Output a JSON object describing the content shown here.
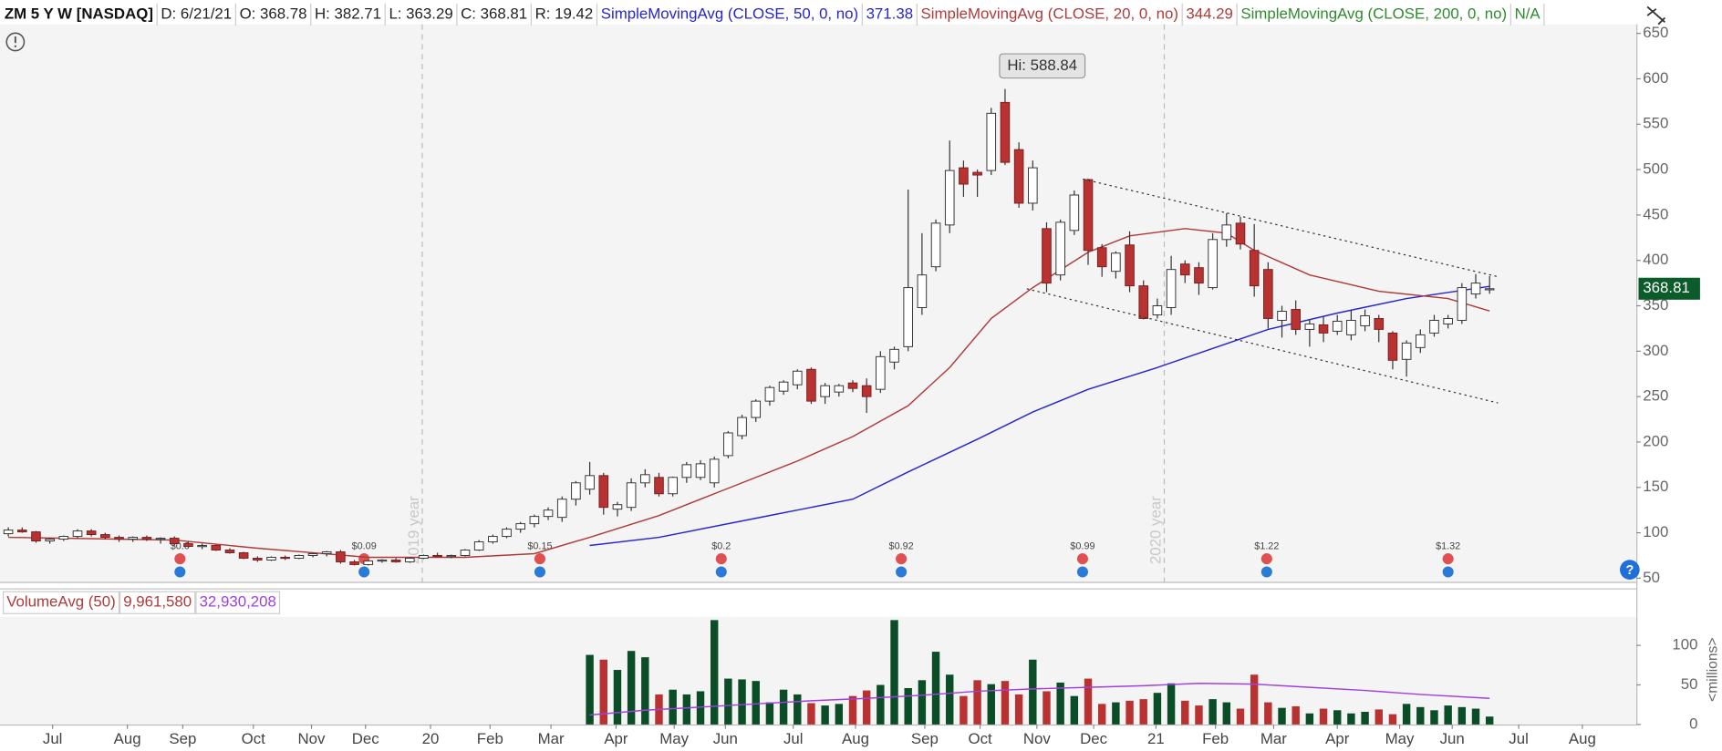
{
  "chart_data": [
    {
      "type": "candlestick",
      "symbol": "ZM 5 Y W [NASDAQ]",
      "header": [
        "D: 6/21/21",
        "O: 368.78",
        "H: 382.71",
        "L: 363.29",
        "C: 368.81",
        "R: 19.42"
      ],
      "studies": [
        {
          "label": "SimpleMovingAvg (CLOSE, 50, 0, no)",
          "value_label": "371.38",
          "color": "#2626d0",
          "x": [
            42,
            47,
            55,
            61,
            65,
            70,
            74,
            78,
            83,
            87,
            91,
            96,
            101,
            107
          ],
          "values": [
            86,
            95,
            119,
            137,
            167,
            203,
            233,
            258,
            282,
            303,
            324,
            342,
            358,
            371.38
          ]
        },
        {
          "label": "SimpleMovingAvg (CLOSE, 20, 0, no)",
          "value_label": "344.29",
          "color": "#b03a3a",
          "x": [
            0,
            12,
            18,
            26,
            33,
            38,
            42,
            47,
            52,
            57,
            61,
            65,
            68,
            71,
            74,
            78,
            81,
            85,
            88,
            90,
            94,
            99,
            104,
            107
          ],
          "values": [
            95,
            92,
            83,
            73,
            73,
            77,
            95,
            119,
            149,
            179,
            206,
            240,
            282,
            336,
            370,
            409,
            427,
            435,
            430,
            411,
            384,
            366,
            358,
            344.29
          ]
        },
        {
          "label": "SimpleMovingAvg (CLOSE, 200, 0, no)",
          "value_label": "N/A",
          "color": "#2e8b2e"
        }
      ],
      "ohlc": [
        [
          99,
          106,
          96,
          103
        ],
        [
          103,
          106,
          100,
          101
        ],
        [
          101,
          102,
          89,
          91
        ],
        [
          91,
          94,
          88,
          93
        ],
        [
          93,
          97,
          91,
          96
        ],
        [
          96,
          104,
          94,
          102
        ],
        [
          102,
          104,
          96,
          98
        ],
        [
          98,
          100,
          93,
          95
        ],
        [
          95,
          97,
          90,
          93
        ],
        [
          93,
          96,
          90,
          95
        ],
        [
          95,
          97,
          91,
          93
        ],
        [
          93,
          95,
          88,
          94
        ],
        [
          94,
          96,
          86,
          88
        ],
        [
          88,
          90,
          84,
          85
        ],
        [
          85,
          88,
          82,
          86
        ],
        [
          86,
          87,
          80,
          81
        ],
        [
          81,
          83,
          77,
          78
        ],
        [
          78,
          79,
          71,
          72
        ],
        [
          72,
          74,
          68,
          70
        ],
        [
          70,
          74,
          69,
          73
        ],
        [
          73,
          75,
          70,
          72
        ],
        [
          72,
          76,
          71,
          75
        ],
        [
          75,
          78,
          73,
          77
        ],
        [
          77,
          80,
          74,
          79
        ],
        [
          79,
          81,
          66,
          68
        ],
        [
          68,
          70,
          64,
          65
        ],
        [
          65,
          70,
          64,
          69
        ],
        [
          69,
          71,
          67,
          70
        ],
        [
          70,
          72,
          67,
          68
        ],
        [
          68,
          73,
          67,
          72
        ],
        [
          72,
          76,
          71,
          75
        ],
        [
          75,
          78,
          73,
          74
        ],
        [
          74,
          76,
          72,
          75
        ],
        [
          75,
          82,
          74,
          81
        ],
        [
          81,
          92,
          80,
          90
        ],
        [
          90,
          98,
          88,
          96
        ],
        [
          96,
          106,
          94,
          104
        ],
        [
          104,
          112,
          100,
          110
        ],
        [
          110,
          120,
          106,
          118
        ],
        [
          118,
          128,
          114,
          125
        ],
        [
          117,
          140,
          112,
          137
        ],
        [
          137,
          157,
          130,
          155
        ],
        [
          148,
          178,
          142,
          163
        ],
        [
          163,
          166,
          120,
          128
        ],
        [
          126,
          134,
          118,
          131
        ],
        [
          128,
          160,
          124,
          155
        ],
        [
          155,
          170,
          150,
          164
        ],
        [
          161,
          166,
          140,
          143
        ],
        [
          143,
          162,
          140,
          161
        ],
        [
          161,
          178,
          155,
          175
        ],
        [
          161,
          180,
          158,
          176
        ],
        [
          155,
          184,
          150,
          181
        ],
        [
          185,
          212,
          182,
          210
        ],
        [
          207,
          230,
          203,
          227
        ],
        [
          227,
          247,
          222,
          245
        ],
        [
          245,
          262,
          240,
          260
        ],
        [
          256,
          268,
          252,
          266
        ],
        [
          263,
          280,
          258,
          278
        ],
        [
          280,
          282,
          242,
          245
        ],
        [
          250,
          265,
          242,
          262
        ],
        [
          255,
          264,
          250,
          262
        ],
        [
          265,
          268,
          255,
          259
        ],
        [
          262,
          270,
          232,
          250
        ],
        [
          258,
          300,
          254,
          294
        ],
        [
          288,
          305,
          280,
          302
        ],
        [
          305,
          478,
          300,
          370
        ],
        [
          348,
          430,
          340,
          384
        ],
        [
          393,
          445,
          388,
          441
        ],
        [
          439,
          532,
          430,
          499
        ],
        [
          502,
          510,
          470,
          484
        ],
        [
          497,
          500,
          470,
          494
        ],
        [
          499,
          568,
          494,
          562
        ],
        [
          574,
          588.84,
          505,
          508
        ],
        [
          522,
          530,
          458,
          463
        ],
        [
          463,
          510,
          455,
          502
        ],
        [
          435,
          442,
          365,
          375
        ],
        [
          384,
          445,
          378,
          442
        ],
        [
          433,
          477,
          428,
          472
        ],
        [
          489,
          490,
          395,
          411
        ],
        [
          414,
          418,
          382,
          393
        ],
        [
          388,
          410,
          380,
          408
        ],
        [
          417,
          432,
          365,
          372
        ],
        [
          372,
          378,
          335,
          336
        ],
        [
          340,
          358,
          336,
          350
        ],
        [
          348,
          405,
          340,
          390
        ],
        [
          396,
          400,
          375,
          384
        ],
        [
          392,
          398,
          362,
          375
        ],
        [
          370,
          430,
          368,
          423
        ],
        [
          423,
          452,
          415,
          439
        ],
        [
          441,
          448,
          412,
          418
        ],
        [
          411,
          440,
          360,
          372
        ],
        [
          390,
          398,
          325,
          336
        ],
        [
          334,
          350,
          315,
          344
        ],
        [
          346,
          356,
          318,
          324
        ],
        [
          324,
          335,
          305,
          330
        ],
        [
          329,
          338,
          310,
          320
        ],
        [
          322,
          340,
          318,
          333
        ],
        [
          318,
          345,
          312,
          334
        ],
        [
          328,
          346,
          322,
          339
        ],
        [
          336,
          340,
          310,
          324
        ],
        [
          320,
          322,
          280,
          290
        ],
        [
          291,
          312,
          272,
          309
        ],
        [
          304,
          324,
          298,
          318
        ],
        [
          320,
          340,
          316,
          334
        ],
        [
          330,
          340,
          325,
          336
        ],
        [
          334,
          375,
          330,
          370
        ],
        [
          363,
          385,
          358,
          375
        ],
        [
          368.78,
          382.71,
          363.29,
          368.81
        ]
      ],
      "up_color": "#ffffff",
      "down_color": "#b83232",
      "hi_label": "Hi: 588.84",
      "last_label": "368.81",
      "xlim": [
        -0.6,
        117.6
      ],
      "xticks": [
        {
          "value": 3.2,
          "label": "Jul"
        },
        {
          "value": 8.6,
          "label": "Aug"
        },
        {
          "value": 12.6,
          "label": "Sep"
        },
        {
          "value": 17.7,
          "label": "Oct"
        },
        {
          "value": 21.9,
          "label": "Nov"
        },
        {
          "value": 25.8,
          "label": "Dec"
        },
        {
          "value": 30.5,
          "label": "20"
        },
        {
          "value": 34.8,
          "label": "Feb"
        },
        {
          "value": 39.2,
          "label": "Mar"
        },
        {
          "value": 43.9,
          "label": "Apr"
        },
        {
          "value": 48.1,
          "label": "May"
        },
        {
          "value": 51.8,
          "label": "Jun"
        },
        {
          "value": 56.7,
          "label": "Jul"
        },
        {
          "value": 61.2,
          "label": "Aug"
        },
        {
          "value": 66.2,
          "label": "Sep"
        },
        {
          "value": 70.2,
          "label": "Oct"
        },
        {
          "value": 74.3,
          "label": "Nov"
        },
        {
          "value": 78.4,
          "label": "Dec"
        },
        {
          "value": 82.9,
          "label": "21"
        },
        {
          "value": 87.2,
          "label": "Feb"
        },
        {
          "value": 91.4,
          "label": "Mar"
        },
        {
          "value": 96.0,
          "label": "Apr"
        },
        {
          "value": 100.5,
          "label": "May"
        },
        {
          "value": 104.3,
          "label": "Jun"
        },
        {
          "value": 109.1,
          "label": "Jul"
        },
        {
          "value": 113.7,
          "label": "Aug"
        }
      ],
      "ylim": [
        46,
        660
      ],
      "yticks": [
        50,
        100,
        150,
        200,
        250,
        300,
        350,
        400,
        450,
        500,
        550,
        600,
        650
      ],
      "year_markers": [
        {
          "x": 29.9,
          "label": "2019 year"
        },
        {
          "x": 83.5,
          "label": "2020 year"
        }
      ],
      "events": [
        {
          "x": 12.4,
          "label": "$0.0"
        },
        {
          "x": 25.7,
          "label": "$0.09"
        },
        {
          "x": 38.4,
          "label": "$0.15"
        },
        {
          "x": 51.5,
          "label": "$0.2"
        },
        {
          "x": 64.5,
          "label": "$0.92"
        },
        {
          "x": 77.6,
          "label": "$0.99"
        },
        {
          "x": 90.9,
          "label": "$1.22"
        },
        {
          "x": 104.0,
          "label": "$1.32"
        }
      ]
    },
    {
      "type": "bar",
      "title": "VolumeAvg (50)",
      "current": "9,961,580",
      "values": [
        null,
        null,
        null,
        null,
        null,
        null,
        null,
        null,
        null,
        null,
        null,
        null,
        null,
        null,
        null,
        null,
        null,
        null,
        null,
        null,
        null,
        null,
        null,
        null,
        null,
        null,
        null,
        null,
        null,
        null,
        null,
        null,
        null,
        null,
        null,
        null,
        null,
        null,
        null,
        null,
        null,
        null,
        88,
        82,
        69,
        93,
        85,
        38,
        44,
        38,
        42,
        132,
        58,
        57,
        55,
        28,
        44,
        38,
        27,
        24,
        26,
        36,
        43,
        50,
        132,
        46,
        56,
        92,
        63,
        36,
        56,
        51,
        55,
        38,
        82,
        42,
        53,
        36,
        58,
        26,
        28,
        30,
        32,
        40,
        52,
        30,
        24,
        32,
        28,
        20,
        63,
        28,
        21,
        23,
        14,
        20,
        18,
        14,
        16,
        19,
        13,
        26,
        22,
        18,
        24,
        22,
        20,
        10
      ],
      "up_color": "#0b4d26",
      "down_color": "#b83232",
      "studies": [
        {
          "value_label": "32,930,208",
          "color": "#a040e0",
          "x": [
            42,
            46,
            50,
            54,
            58,
            62,
            66,
            70,
            74,
            78,
            82,
            86,
            90,
            94,
            98,
            102,
            107
          ],
          "values": [
            12,
            18,
            22,
            26,
            30,
            33,
            37,
            42,
            45,
            47,
            49,
            52,
            51,
            47,
            43,
            38,
            33
          ]
        }
      ],
      "ylabel": "<millions>",
      "ylim": [
        0,
        136
      ],
      "yticks": [
        0,
        50,
        100
      ]
    }
  ]
}
